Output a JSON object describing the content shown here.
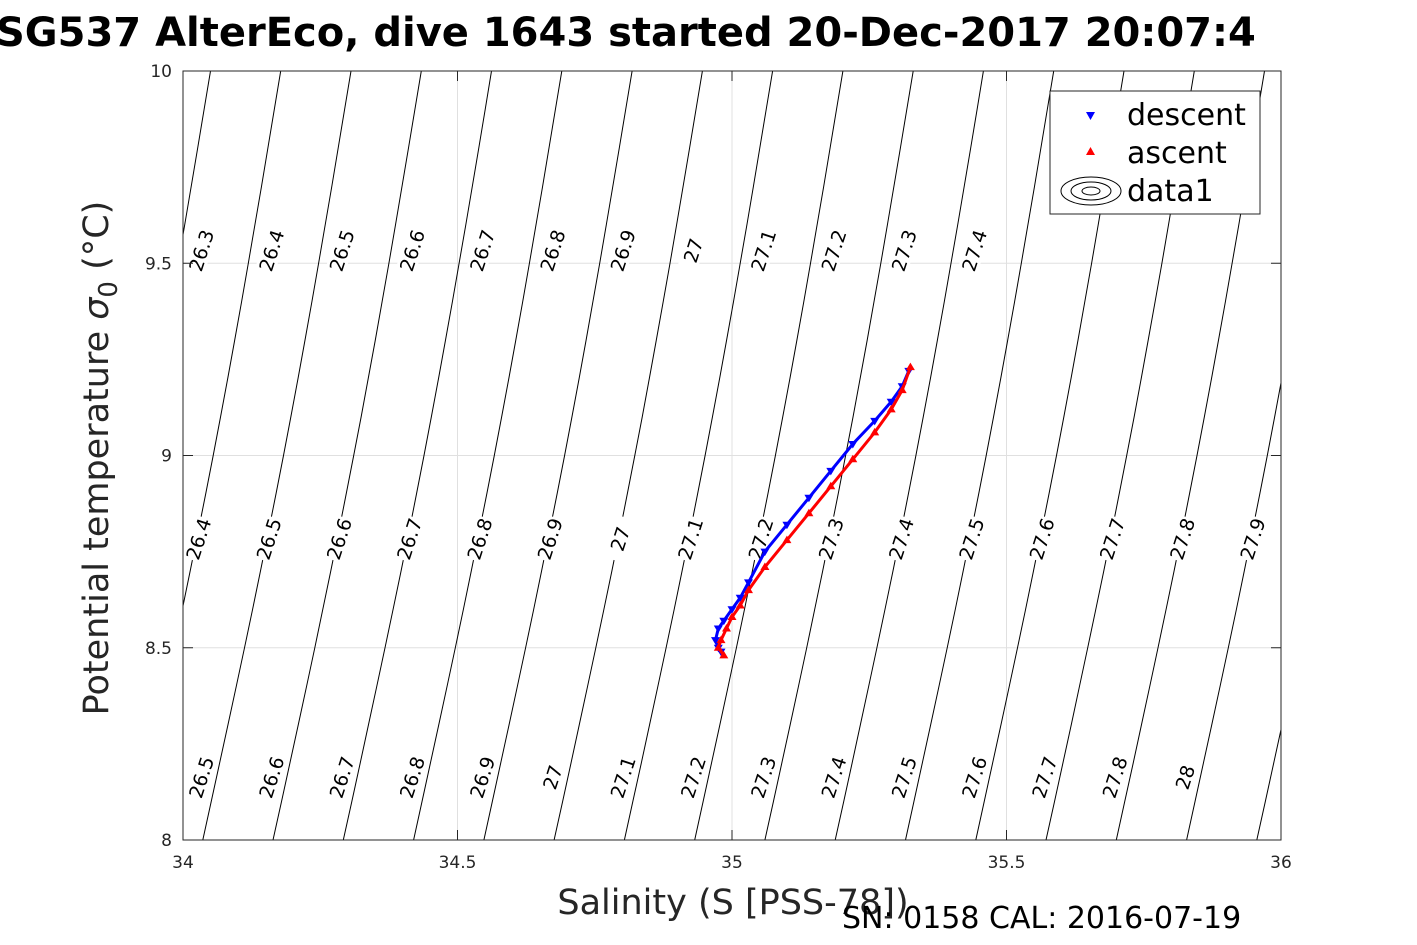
{
  "chart_data": {
    "type": "scatter",
    "title": "SG537 AlterEco, dive 1643 started 20-Dec-2017 20:07:4",
    "xlabel": "Salinity (S [PSS-78])",
    "ylabel_main": "Potential temperature ",
    "ylabel_sigma": "σ",
    "ylabel_sub": "0",
    "ylabel_unit": " (°C)",
    "footer": "SN: 0158  CAL: 2016-07-19",
    "xlim": [
      34,
      36
    ],
    "ylim": [
      8,
      10
    ],
    "xticks": [
      "34",
      "34.5",
      "35",
      "35.5",
      "36"
    ],
    "yticks": [
      "8",
      "8.5",
      "9",
      "9.5",
      "10"
    ],
    "grid": true,
    "legend_placement": "top-right",
    "legend": [
      "descent",
      "ascent",
      "data1"
    ],
    "colors": {
      "descent": "#0000ff",
      "ascent": "#ff0000",
      "contour": "#000000",
      "grid": "#e0e0e0",
      "axis": "#262626"
    },
    "series": [
      {
        "name": "descent",
        "marker": "triangle-down",
        "x": [
          35.322,
          35.31,
          35.29,
          35.26,
          35.22,
          35.18,
          35.14,
          35.1,
          35.06,
          35.03,
          35.015,
          35.0,
          34.985,
          34.975,
          34.97,
          34.975,
          34.98
        ],
        "y": [
          9.22,
          9.18,
          9.14,
          9.09,
          9.03,
          8.96,
          8.89,
          8.82,
          8.75,
          8.67,
          8.63,
          8.6,
          8.57,
          8.55,
          8.52,
          8.5,
          8.49
        ]
      },
      {
        "name": "ascent",
        "marker": "triangle-up",
        "x": [
          34.985,
          34.975,
          34.98,
          34.99,
          35.0,
          35.015,
          35.03,
          35.06,
          35.1,
          35.14,
          35.18,
          35.22,
          35.26,
          35.29,
          35.31,
          35.325
        ],
        "y": [
          8.48,
          8.5,
          8.52,
          8.55,
          8.58,
          8.61,
          8.65,
          8.71,
          8.78,
          8.85,
          8.92,
          8.99,
          9.06,
          9.12,
          9.17,
          9.23
        ]
      }
    ],
    "contour_levels": [
      "26.3",
      "26.4",
      "26.5",
      "26.6",
      "26.7",
      "26.8",
      "26.9",
      "27",
      "27.1",
      "27.2",
      "27.3",
      "27.4",
      "27.5",
      "27.6",
      "27.7",
      "27.8",
      "27.9",
      "28"
    ],
    "contour_labels_row1": [
      "26.5",
      "26.6",
      "26.7",
      "26.8",
      "26.9",
      "27",
      "27.1",
      "27.2",
      "27.3",
      "27.4",
      "27.5",
      "27.6",
      "27.7",
      "27.8",
      "28"
    ],
    "contour_labels_row2": [
      "26.4",
      "26.5",
      "26.6",
      "26.7",
      "26.8",
      "26.9",
      "27",
      "27.1",
      "27.2",
      "27.3",
      "27.4",
      "27.5",
      "27.6",
      "27.7",
      "27.8",
      "27.9"
    ],
    "contour_labels_row3": [
      "26.3",
      "26.4",
      "26.5",
      "26.6",
      "26.7",
      "26.8",
      "26.9",
      "27",
      "27.1",
      "27.2",
      "27.3",
      "27.4"
    ]
  }
}
